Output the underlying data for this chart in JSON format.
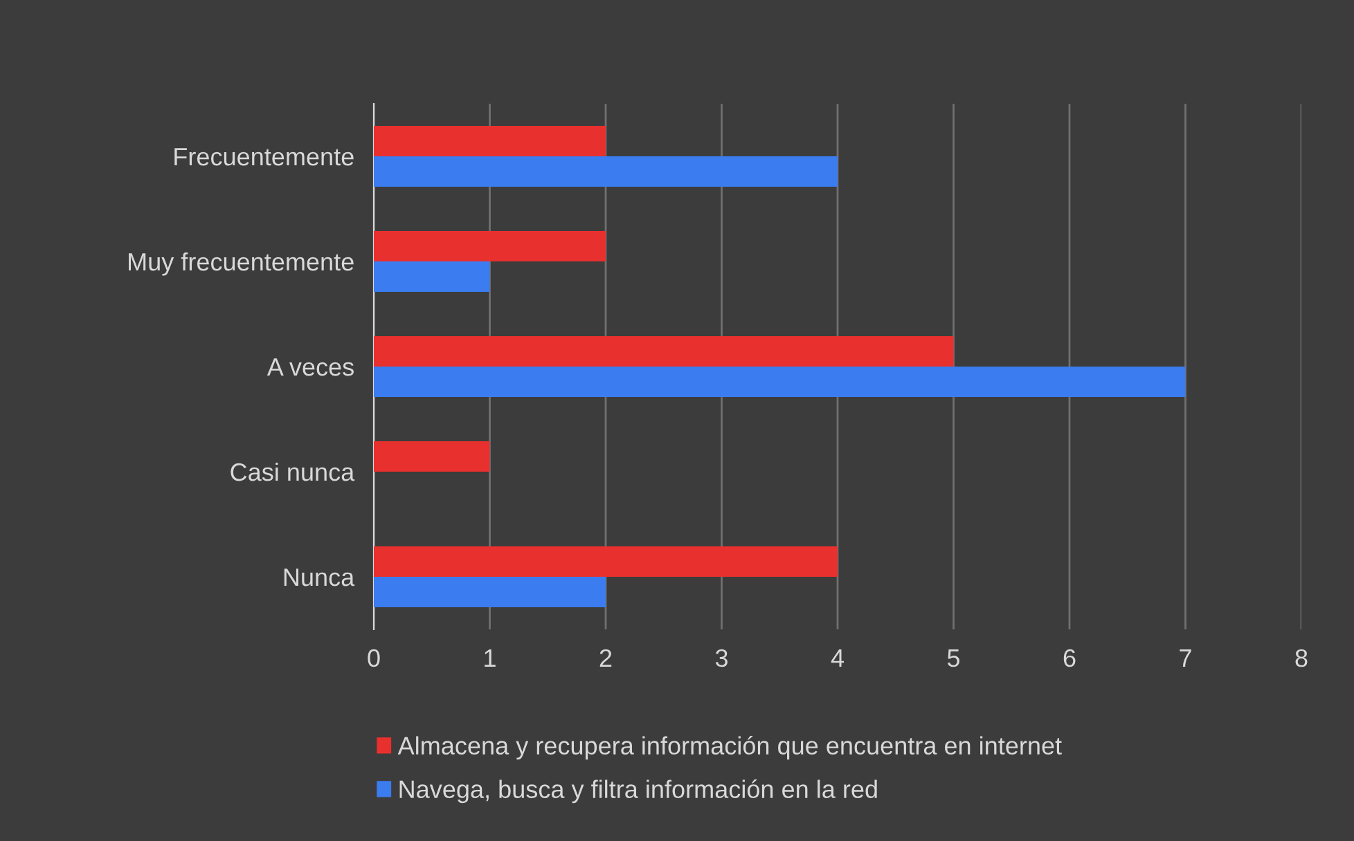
{
  "chart_data": {
    "type": "bar",
    "orientation": "horizontal",
    "categories": [
      "Frecuentemente",
      "Muy frecuentemente",
      "A veces",
      "Casi nunca",
      "Nunca"
    ],
    "series": [
      {
        "name": "Almacena y recupera información que encuentra en internet",
        "color": "#e8302e",
        "values": [
          2,
          2,
          5,
          1,
          4
        ]
      },
      {
        "name": "Navega, busca y filtra información en la red",
        "color": "#3b7cf0",
        "values": [
          4,
          1,
          7,
          0,
          2
        ]
      }
    ],
    "xlim": [
      0,
      8
    ],
    "xticks": [
      0,
      1,
      2,
      3,
      4,
      5,
      6,
      7,
      8
    ],
    "grid": "x",
    "legend": "bottom"
  }
}
